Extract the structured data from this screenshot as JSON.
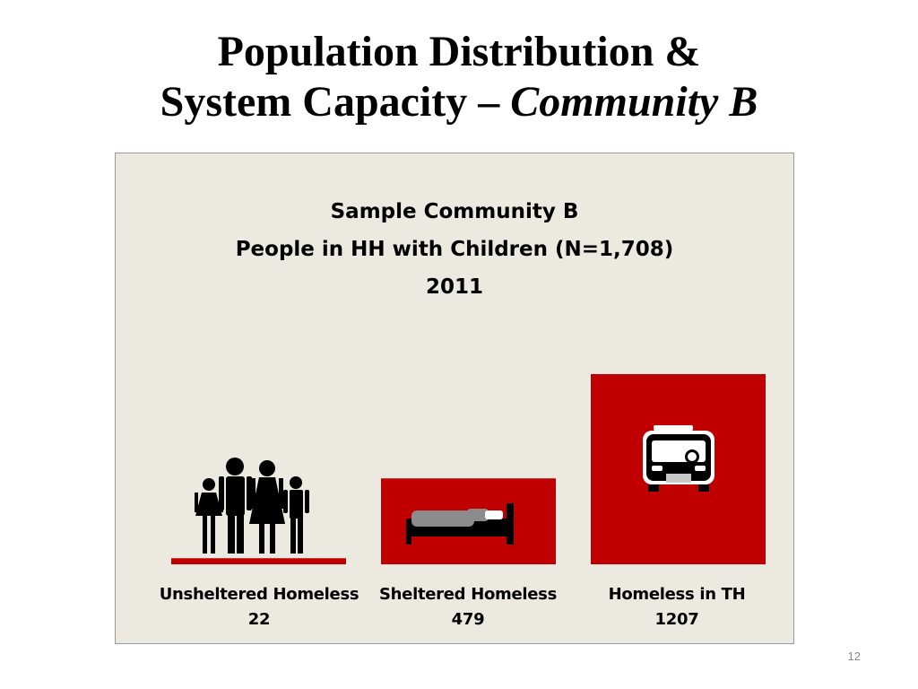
{
  "slide": {
    "title_line1": "Population Distribution &",
    "title_line2_plain": "System Capacity – ",
    "title_line2_italic": "Community B",
    "page_number": "12"
  },
  "chart_data": {
    "type": "bar",
    "title": "Sample Community B",
    "subtitle": "People in HH with Children (N=1,708)",
    "year": "2011",
    "categories": [
      "Unsheltered Homeless",
      "Sheltered Homeless",
      "Homeless in TH"
    ],
    "values": [
      22,
      479,
      1207
    ],
    "value_labels": [
      "22",
      "479",
      "1207"
    ],
    "icons": [
      "family-icon",
      "bed-icon",
      "bus-icon"
    ],
    "ylim": [
      0,
      1207
    ],
    "grid": false,
    "legend": "none",
    "colors": {
      "bar": "#c00000",
      "panel": "#ece9e0",
      "icon": "#000000"
    }
  }
}
